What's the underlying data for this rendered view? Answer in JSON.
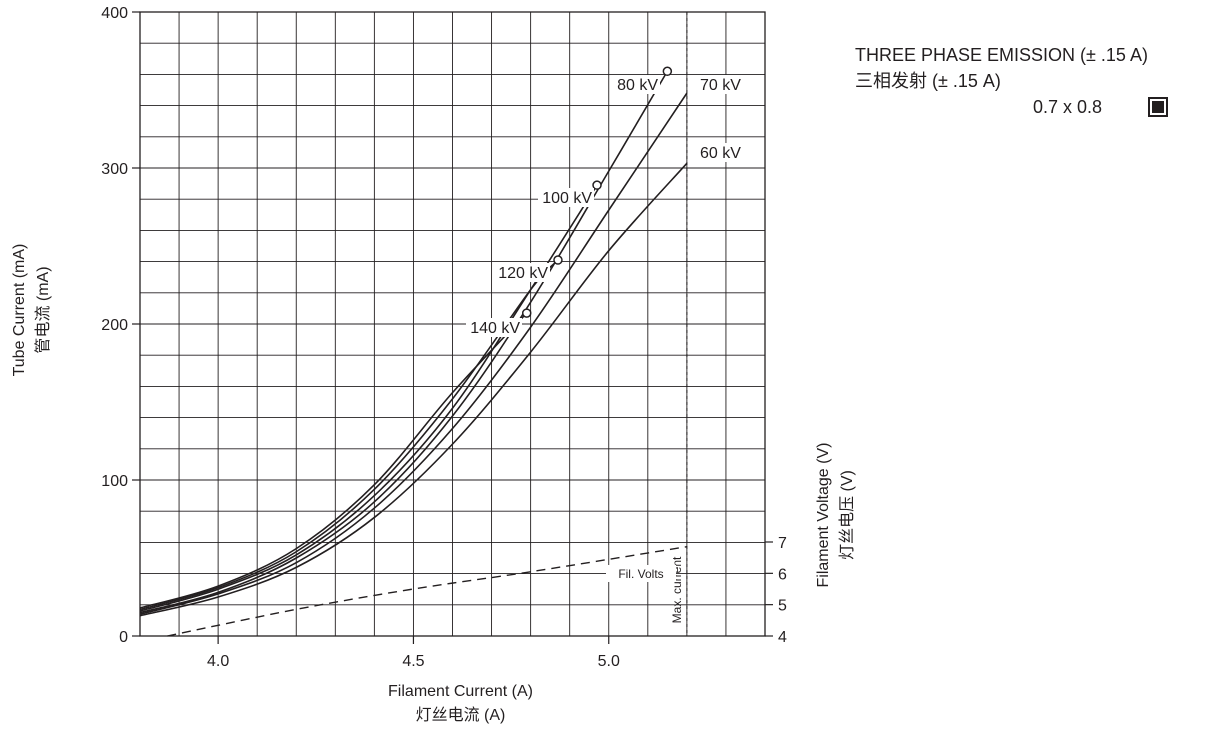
{
  "chart_data": {
    "type": "line",
    "x_axis": {
      "label": "Filament Current (A)",
      "label_cn": "灯丝电流 (A)",
      "range": [
        3.8,
        5.4
      ],
      "ticks": [
        4.0,
        4.5,
        5.0
      ],
      "tick_labels": [
        "4.0",
        "4.5",
        "5.0"
      ],
      "minor_step": 0.1
    },
    "y_axis": {
      "label": "Tube Current (mA)",
      "label_cn": "管电流 (mA)",
      "range": [
        0,
        400
      ],
      "ticks": [
        0,
        100,
        200,
        300,
        400
      ],
      "tick_labels": [
        "0",
        "100",
        "200",
        "300",
        "400"
      ],
      "minor_step": 20
    },
    "y2_axis": {
      "label": "Filament Voltage (V)",
      "label_cn": "灯丝电压 (V)",
      "range": [
        4,
        7
      ],
      "ticks": [
        4,
        5,
        6,
        7
      ],
      "tick_labels": [
        "4",
        "5",
        "6",
        "7"
      ]
    },
    "grid": true,
    "series": [
      {
        "name": "60 kV",
        "x": [
          3.8,
          4.0,
          4.2,
          4.4,
          4.6,
          4.8,
          5.0,
          5.2
        ],
        "y": [
          13,
          25,
          44,
          76,
          123,
          182,
          247,
          303
        ]
      },
      {
        "name": "70 kV",
        "x": [
          3.8,
          4.0,
          4.2,
          4.4,
          4.6,
          4.8,
          5.0,
          5.2
        ],
        "y": [
          14,
          27,
          47,
          82,
          133,
          198,
          273,
          348
        ]
      },
      {
        "name": "80 kV",
        "x": [
          3.8,
          4.0,
          4.2,
          4.4,
          4.6,
          4.8,
          5.0,
          5.15
        ],
        "y": [
          15,
          28,
          50,
          86,
          141,
          214,
          298,
          362
        ]
      },
      {
        "name": "100 kV",
        "x": [
          3.8,
          4.0,
          4.2,
          4.4,
          4.6,
          4.8,
          4.97
        ],
        "y": [
          16,
          30,
          52,
          90,
          146,
          222,
          289
        ]
      },
      {
        "name": "120 kV",
        "x": [
          3.8,
          4.0,
          4.2,
          4.4,
          4.6,
          4.8,
          4.87
        ],
        "y": [
          17,
          31,
          54,
          94,
          152,
          222,
          241
        ]
      },
      {
        "name": "140 kV",
        "x": [
          3.8,
          4.0,
          4.2,
          4.4,
          4.6,
          4.79
        ],
        "y": [
          18,
          32,
          56,
          97,
          156,
          207
        ]
      }
    ],
    "filament_volts": {
      "label": "Fil. Volts",
      "axis": "y2",
      "x": [
        3.87,
        4.2,
        4.5,
        4.8,
        5.2
      ],
      "y": [
        4.0,
        4.85,
        5.5,
        6.05,
        6.85
      ]
    },
    "max_current": {
      "label": "Max. current",
      "x": 5.2
    },
    "legend": {
      "title": "THREE PHASE EMISSION (± .15 A)",
      "title_cn": "三相发射 (± .15 A)",
      "focal_spot": "0.7 x 0.8"
    }
  }
}
